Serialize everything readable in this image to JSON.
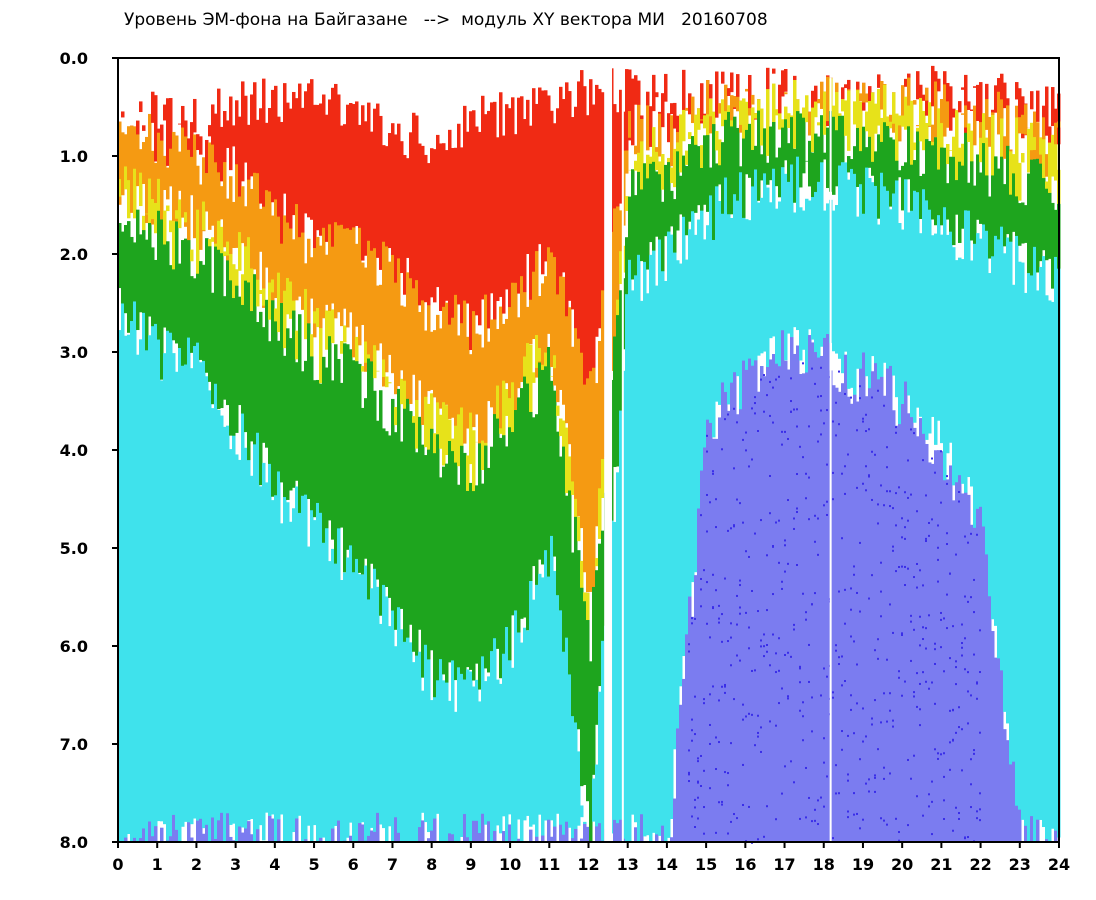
{
  "chart_data": {
    "type": "heatmap",
    "title": "Уровень ЭМ-фона на Байгазане   -->  модуль XY вектора МИ   20160708",
    "xlabel": "",
    "ylabel": "",
    "xlim": [
      0,
      24
    ],
    "ylim": [
      8.0,
      0.0
    ],
    "y_axis_inverted": true,
    "x_ticks": [
      "0",
      "1",
      "2",
      "3",
      "4",
      "5",
      "6",
      "7",
      "8",
      "9",
      "10",
      "11",
      "12",
      "13",
      "14",
      "15",
      "16",
      "17",
      "18",
      "19",
      "20",
      "21",
      "22",
      "23",
      "24"
    ],
    "y_ticks": [
      "0.0",
      "1.0",
      "2.0",
      "3.0",
      "4.0",
      "5.0",
      "6.0",
      "7.0",
      "8.0"
    ],
    "color_scale": [
      {
        "name": "blue",
        "color": "#3a2ee8"
      },
      {
        "name": "light-blue",
        "color": "#7b7cf0"
      },
      {
        "name": "cyan",
        "color": "#3fe2ec"
      },
      {
        "name": "green",
        "color": "#1ea51e"
      },
      {
        "name": "yellow",
        "color": "#e7e21a"
      },
      {
        "name": "orange",
        "color": "#f59a12"
      },
      {
        "name": "red",
        "color": "#f02a14"
      }
    ],
    "hourly_bands": [
      {
        "hour": 0,
        "top": 0.3,
        "red": 0.7,
        "yellow": 1.6,
        "green": 2.6,
        "cyan": 8.0
      },
      {
        "hour": 1,
        "top": 0.3,
        "red": 0.9,
        "yellow": 1.8,
        "green": 3.0,
        "cyan": 8.0
      },
      {
        "hour": 2,
        "top": 0.4,
        "red": 1.0,
        "yellow": 2.0,
        "green": 3.2,
        "cyan": 8.0
      },
      {
        "hour": 3,
        "top": 0.2,
        "red": 1.2,
        "yellow": 2.3,
        "green": 3.8,
        "cyan": 8.0
      },
      {
        "hour": 4,
        "top": 0.2,
        "red": 1.6,
        "yellow": 2.7,
        "green": 4.4,
        "cyan": 8.0
      },
      {
        "hour": 5,
        "top": 0.2,
        "red": 1.9,
        "yellow": 3.0,
        "green": 4.8,
        "cyan": 8.0
      },
      {
        "hour": 6,
        "top": 0.3,
        "red": 2.0,
        "yellow": 3.2,
        "green": 5.2,
        "cyan": 8.0
      },
      {
        "hour": 7,
        "top": 0.5,
        "red": 2.2,
        "yellow": 3.6,
        "green": 5.8,
        "cyan": 8.0
      },
      {
        "hour": 8,
        "top": 0.6,
        "red": 2.6,
        "yellow": 4.0,
        "green": 6.3,
        "cyan": 8.0
      },
      {
        "hour": 9,
        "top": 0.4,
        "red": 2.8,
        "yellow": 4.2,
        "green": 6.5,
        "cyan": 8.0
      },
      {
        "hour": 10,
        "top": 0.3,
        "red": 2.5,
        "yellow": 3.7,
        "green": 6.0,
        "cyan": 8.0
      },
      {
        "hour": 11,
        "top": 0.2,
        "red": 2.0,
        "yellow": 3.2,
        "green": 5.0,
        "cyan": 8.0
      },
      {
        "hour": 12,
        "top": 0.1,
        "red": 3.5,
        "yellow": 6.0,
        "green": 8.0,
        "cyan": 8.0
      },
      {
        "hour": 13,
        "top": 0.1,
        "red": 0.8,
        "yellow": 1.4,
        "green": 2.3,
        "cyan": 8.0
      },
      {
        "hour": 14,
        "top": 0.1,
        "red": 0.6,
        "yellow": 1.2,
        "green": 2.0,
        "cyan": 8.0
      },
      {
        "hour": 15,
        "top": 0.1,
        "red": 0.5,
        "yellow": 0.9,
        "green": 1.6,
        "cyan": 3.8
      },
      {
        "hour": 16,
        "top": 0.1,
        "red": 0.4,
        "yellow": 0.8,
        "green": 1.4,
        "cyan": 3.3
      },
      {
        "hour": 17,
        "top": 0.1,
        "red": 0.4,
        "yellow": 0.8,
        "green": 1.3,
        "cyan": 3.0
      },
      {
        "hour": 18,
        "top": 0.1,
        "red": 0.4,
        "yellow": 0.8,
        "green": 1.3,
        "cyan": 3.1
      },
      {
        "hour": 19,
        "top": 0.1,
        "red": 0.4,
        "yellow": 0.8,
        "green": 1.4,
        "cyan": 3.3
      },
      {
        "hour": 20,
        "top": 0.1,
        "red": 0.4,
        "yellow": 0.9,
        "green": 1.5,
        "cyan": 3.5
      },
      {
        "hour": 21,
        "top": 0.0,
        "red": 0.5,
        "yellow": 1.0,
        "green": 1.7,
        "cyan": 4.0
      },
      {
        "hour": 22,
        "top": 0.1,
        "red": 0.6,
        "yellow": 1.1,
        "green": 1.9,
        "cyan": 4.8
      },
      {
        "hour": 23,
        "top": 0.2,
        "red": 0.7,
        "yellow": 1.2,
        "green": 2.1,
        "cyan": 8.0
      },
      {
        "hour": 24,
        "top": 0.3,
        "red": 0.8,
        "yellow": 1.3,
        "green": 2.3,
        "cyan": 8.0
      }
    ],
    "gaps": [
      {
        "x_start": 12.4,
        "x_end": 12.6,
        "y_from": 0.0,
        "y_to": 8.0
      },
      {
        "x_start": 12.85,
        "x_end": 12.9,
        "y_from": 0.0,
        "y_to": 8.0
      },
      {
        "x_start": 18.15,
        "x_end": 18.2,
        "y_from": 0.2,
        "y_to": 8.0
      }
    ]
  }
}
